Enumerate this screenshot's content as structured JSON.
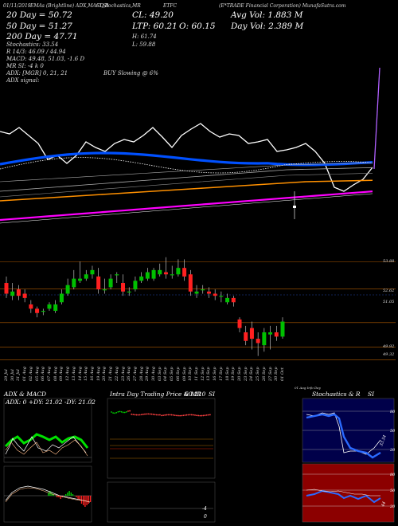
{
  "header": {
    "top_row": "(E*TRADE Financial Corporation) MunafaSutra.com",
    "date": "01/11/2019",
    "emas_caption": "EMAs (Brightline) ADX,MACD,B",
    "stoch_caption": "SI,Stochastics,MR",
    "ticker": "ETFC",
    "cl": "CL: 49.20",
    "ltp": "LTP: 60.21",
    "op": "O: 60.15",
    "h": "H: 61.74",
    "l": "L: 59.88",
    "avg_vol": "Avg Vol: 1.883 M",
    "day_vol": "Day Vol: 2.389 M",
    "ema20": "20 Day = 50.72",
    "ema50": "50 Day = 51.27",
    "ema200": "200 Day = 47.71",
    "stoch": "Stochastics: 33.54",
    "bb": "R 14/3: 46.09 / 44.94",
    "macd": "MACD: 49.48, 51.03, -1.6  D",
    "mr": "MR    SI: -4  k  0",
    "adx": "ADX:                [MGR] 0, 21, 21",
    "adx_signal": "ADX  signal:",
    "buy_note": "BUY Slowing @ 6%"
  },
  "price_axis": {
    "labels": [
      "53.88",
      "52.62",
      "51.05",
      "49.92",
      "49.32"
    ]
  },
  "date_axis": {
    "labels": [
      "29 Jul",
      "30 Jul",
      "31 Jul",
      "01 Aug",
      "02 Aug",
      "05 Aug",
      "06 Aug",
      "07 Aug",
      "08 Aug",
      "09 Aug",
      "12 Aug",
      "13 Aug",
      "14 Aug",
      "15 Aug",
      "16 Aug",
      "19 Aug",
      "20 Aug",
      "21 Aug",
      "22 Aug",
      "23 Aug",
      "26 Aug",
      "27 Aug",
      "28 Aug",
      "29 Aug",
      "30 Aug",
      "03 Sep",
      "04 Sep",
      "05 Sep",
      "06 Sep",
      "09 Sep",
      "10 Sep",
      "11 Sep",
      "12 Sep",
      "13 Sep",
      "16 Sep",
      "17 Sep",
      "18 Sep",
      "19 Sep",
      "20 Sep",
      "23 Sep",
      "24 Sep",
      "25 Sep",
      "26 Sep",
      "27 Sep",
      "30 Sep",
      "01 Oct"
    ],
    "footer": "01 Aug Info   Day"
  },
  "panels": {
    "adx_title": "ADX  & MACD",
    "adx_readout": "ADX: 0  +DY: 21.02  -DY: 21.02",
    "intra_title": "Intra  Day Trading Price  & MR",
    "intra_value": "60.210",
    "intra_si": "SI",
    "intra_right": "-4",
    "intra_zero": "0",
    "stoch_title": "Stochastics  & R",
    "stoch_si": "SI",
    "stoch_levels": [
      "80",
      "50",
      "20"
    ],
    "si_levels": [
      "80",
      "50",
      "20"
    ],
    "stoch_value": "33.54",
    "si_value": "44"
  },
  "colors": {
    "up": "#00c000",
    "down": "#ff2020",
    "ema20": "#0050ff",
    "ema50": "#ff9000",
    "ema200": "#ff00ff",
    "price": "#ffffff",
    "band": "#ffffff",
    "stoch_panel_bg": "#00004a",
    "si_panel_bg": "#8c0000"
  },
  "chart_data": [
    {
      "type": "line",
      "title": "E*TRADE Financial Corporation",
      "series": [
        {
          "name": "20 Day",
          "values": [
            2,
            2,
            2,
            2,
            2,
            2,
            2,
            2,
            2,
            2,
            2,
            2,
            2,
            2,
            2,
            2,
            2,
            2,
            2,
            2,
            2,
            2,
            2,
            2,
            2,
            2,
            2,
            2,
            2,
            2,
            2,
            2,
            2,
            2,
            2,
            2,
            2,
            2,
            2,
            2,
            2,
            2,
            2,
            2,
            2,
            2
          ]
        },
        {
          "name": "50 Day",
          "values": [
            1,
            1,
            1,
            1,
            1,
            1,
            1,
            1,
            1,
            1,
            1,
            1,
            1,
            1,
            1,
            1,
            1,
            1,
            1,
            1,
            1,
            1,
            1,
            1,
            1,
            1,
            1,
            1,
            1,
            1,
            1,
            1,
            1,
            1,
            1,
            1,
            1,
            1,
            1,
            1,
            1,
            1,
            1,
            1,
            1,
            1
          ]
        },
        {
          "name": "200 Day",
          "values": [
            0,
            0,
            0,
            0,
            0,
            0,
            0,
            0,
            0,
            0,
            0,
            0,
            0,
            0,
            0,
            0,
            0,
            0,
            0,
            0,
            0,
            0,
            0,
            0,
            0,
            0,
            0,
            0,
            0,
            0,
            0,
            0,
            0,
            0,
            0,
            0,
            0,
            0,
            0,
            0,
            0,
            0,
            0,
            0,
            0,
            0
          ]
        }
      ]
    },
    {
      "type": "bar",
      "title": "candles",
      "categories": [
        "29 Jul",
        "30 Jul",
        "31 Jul",
        "01 Aug",
        "02 Aug",
        "05 Aug",
        "06 Aug",
        "07 Aug",
        "08 Aug",
        "09 Aug",
        "12 Aug",
        "13 Aug",
        "14 Aug",
        "15 Aug",
        "16 Aug",
        "19 Aug",
        "20 Aug",
        "21 Aug",
        "22 Aug",
        "23 Aug",
        "26 Aug",
        "27 Aug",
        "28 Aug",
        "29 Aug",
        "30 Aug",
        "03 Sep",
        "04 Sep",
        "05 Sep",
        "06 Sep",
        "09 Sep",
        "10 Sep",
        "11 Sep",
        "12 Sep",
        "13 Sep",
        "16 Sep",
        "17 Sep",
        "18 Sep",
        "19 Sep",
        "20 Sep",
        "23 Sep",
        "24 Sep",
        "25 Sep",
        "26 Sep",
        "27 Sep",
        "30 Sep",
        "01 Oct"
      ],
      "open": [
        52.9,
        52.3,
        52.6,
        52.4,
        51.9,
        51.7,
        51.6,
        51.7,
        51.6,
        52.0,
        52.4,
        52.7,
        53.0,
        53.1,
        53.3,
        53.2,
        52.6,
        52.7,
        53.3,
        52.9,
        52.5,
        52.6,
        53.0,
        53.1,
        53.1,
        53.3,
        53.4,
        53.3,
        53.3,
        53.6,
        53.3,
        52.4,
        52.6,
        52.5,
        52.4,
        52.3,
        52.0,
        52.2,
        51.2,
        50.6,
        50.8,
        50.3,
        50.0,
        50.5,
        50.6,
        50.4
      ],
      "close": [
        52.4,
        52.5,
        52.3,
        52.2,
        51.7,
        51.5,
        51.6,
        51.9,
        51.9,
        52.4,
        52.8,
        53.1,
        53.1,
        53.3,
        53.5,
        52.6,
        52.6,
        53.1,
        53.3,
        52.5,
        52.5,
        53.0,
        53.2,
        53.4,
        53.5,
        53.5,
        53.3,
        53.3,
        53.6,
        53.2,
        52.5,
        52.5,
        52.6,
        52.4,
        52.3,
        52.3,
        52.2,
        52.0,
        50.8,
        50.2,
        50.3,
        50.1,
        50.6,
        50.6,
        50.4,
        51.1
      ],
      "high": [
        53.2,
        52.9,
        52.8,
        52.6,
        52.1,
        51.8,
        51.7,
        52.0,
        52.1,
        52.6,
        53.1,
        53.5,
        53.9,
        53.5,
        53.7,
        53.6,
        53.1,
        53.3,
        53.4,
        53.3,
        52.7,
        53.2,
        53.4,
        53.6,
        53.6,
        53.8,
        54.1,
        53.7,
        54.0,
        54.0,
        53.5,
        52.8,
        52.8,
        52.7,
        52.6,
        52.5,
        52.4,
        52.3,
        51.3,
        50.9,
        51.1,
        50.6,
        50.8,
        50.9,
        50.9,
        51.3
      ],
      "low": [
        52.2,
        52.1,
        52.1,
        52.0,
        51.5,
        51.3,
        51.4,
        51.6,
        51.5,
        51.9,
        52.3,
        52.6,
        52.9,
        53.0,
        53.1,
        52.4,
        52.4,
        52.6,
        52.9,
        52.3,
        52.3,
        52.5,
        52.9,
        53.0,
        53.0,
        53.2,
        53.1,
        53.1,
        53.2,
        53.0,
        52.3,
        52.2,
        52.4,
        52.2,
        52.1,
        52.0,
        51.9,
        51.8,
        50.6,
        50.0,
        49.8,
        49.5,
        49.7,
        49.8,
        50.2,
        50.3
      ]
    }
  ]
}
